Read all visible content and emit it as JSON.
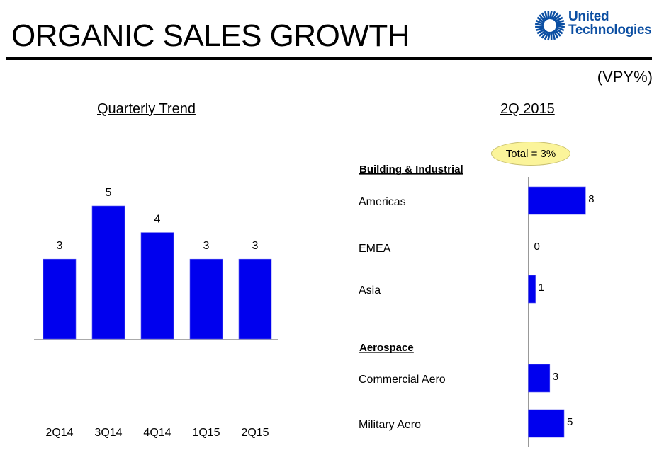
{
  "header": {
    "title": "ORGANIC SALES GROWTH",
    "logo": {
      "line1": "United",
      "line2": "Technologies",
      "icon": "sunburst-logo-icon",
      "color": "#0b4ea2"
    },
    "unit_label": "(VPY%)"
  },
  "chart_data": [
    {
      "type": "bar",
      "title": "Quarterly Trend",
      "categories": [
        "2Q14",
        "3Q14",
        "4Q14",
        "1Q15",
        "2Q15"
      ],
      "values": [
        3,
        5,
        4,
        3,
        3
      ],
      "xlabel": "",
      "ylabel": "",
      "ylim": [
        0,
        5
      ],
      "grid": false,
      "bar_color": "#0000ee"
    },
    {
      "type": "bar",
      "orientation": "horizontal",
      "title": "2Q 2015",
      "annotation": "Total = 3%",
      "groups": [
        {
          "name": "Building & Industrial",
          "items": [
            {
              "label": "Americas",
              "value": 8
            },
            {
              "label": "EMEA",
              "value": 0
            },
            {
              "label": "Asia",
              "value": 1
            }
          ]
        },
        {
          "name": "Aerospace",
          "items": [
            {
              "label": "Commercial Aero",
              "value": 3
            },
            {
              "label": "Military Aero",
              "value": 5
            }
          ]
        }
      ],
      "xlim": [
        0,
        8
      ],
      "grid": false,
      "bar_color": "#0000ee"
    }
  ]
}
